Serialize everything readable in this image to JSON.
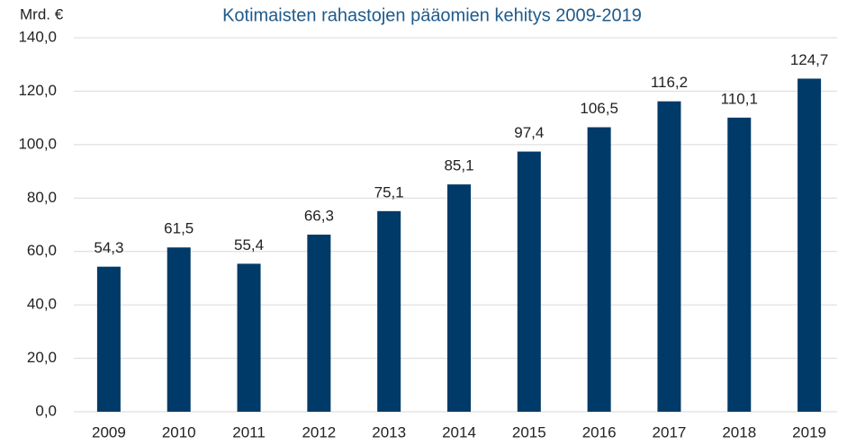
{
  "chart_data": {
    "type": "bar",
    "title": "Kotimaisten rahastojen pääomien kehitys 2009-2019",
    "y_label": "Mrd. €",
    "categories": [
      "2009",
      "2010",
      "2011",
      "2012",
      "2013",
      "2014",
      "2015",
      "2016",
      "2017",
      "2018",
      "2019"
    ],
    "values": [
      54.3,
      61.5,
      55.4,
      66.3,
      75.1,
      85.1,
      97.4,
      106.5,
      116.2,
      110.1,
      124.7
    ],
    "value_labels": [
      "54,3",
      "61,5",
      "55,4",
      "66,3",
      "75,1",
      "85,1",
      "97,4",
      "106,5",
      "116,2",
      "110,1",
      "124,7"
    ],
    "color": "#003a68",
    "ylim": [
      0,
      140
    ],
    "yticks": [
      {
        "value": 0,
        "label": "0,0"
      },
      {
        "value": 20,
        "label": "20,0"
      },
      {
        "value": 40,
        "label": "40,0"
      },
      {
        "value": 60,
        "label": "60,0"
      },
      {
        "value": 80,
        "label": "80,0"
      },
      {
        "value": 100,
        "label": "100,0"
      },
      {
        "value": 120,
        "label": "120,0"
      },
      {
        "value": 140,
        "label": "140,0"
      }
    ],
    "grid": true
  }
}
